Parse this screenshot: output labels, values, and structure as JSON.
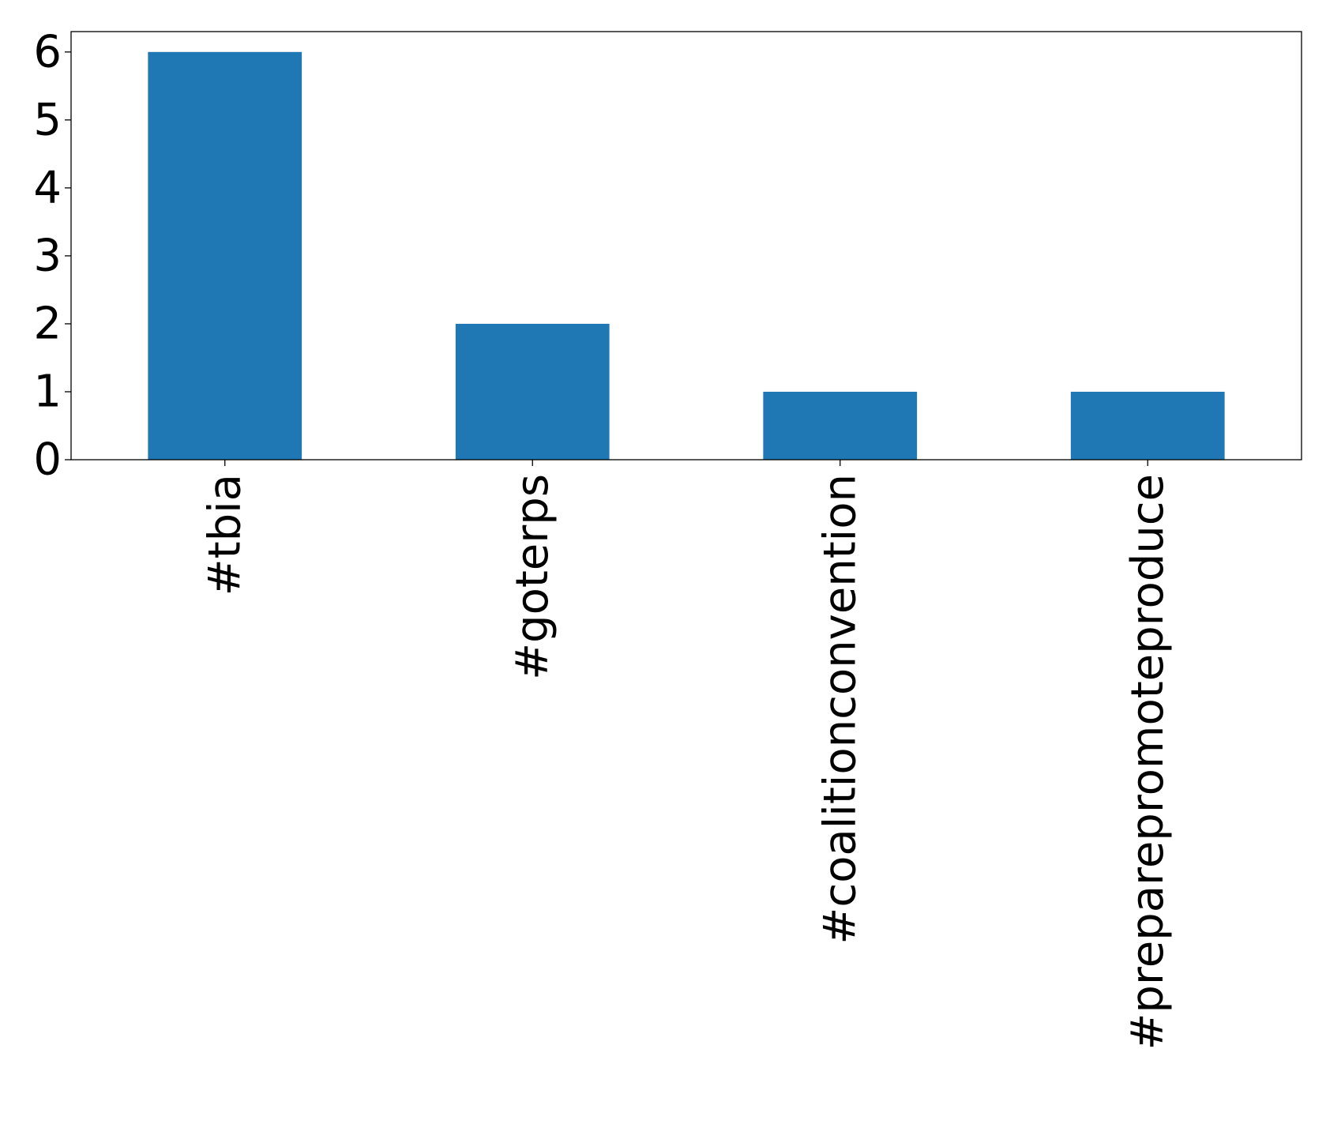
{
  "chart_data": {
    "type": "bar",
    "categories": [
      "#tbia",
      "#goterps",
      "#coalitionconvention",
      "#preparepromoteproduce"
    ],
    "values": [
      6,
      2,
      1,
      1
    ],
    "title": "",
    "xlabel": "",
    "ylabel": "",
    "ylim": [
      0,
      6.3
    ],
    "yticks": [
      0,
      1,
      2,
      3,
      4,
      5,
      6
    ],
    "grid": false,
    "bar_color": "#1f77b4",
    "x_tick_rotation": "vertical"
  }
}
